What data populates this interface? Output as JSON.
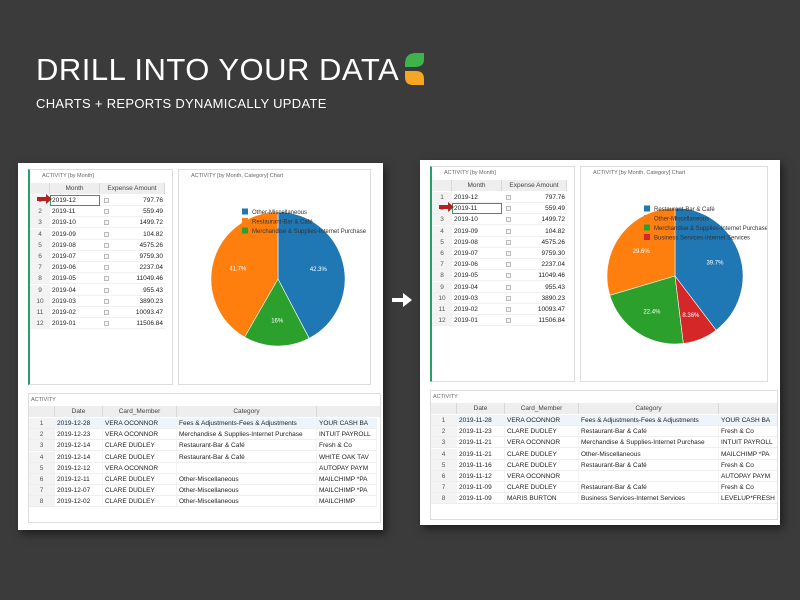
{
  "header": {
    "title": "DRILL INTO YOUR DATA",
    "subtitle": "CHARTS + REPORTS DYNAMICALLY UPDATE"
  },
  "panels": [
    {
      "month_table": {
        "title": "ACTIVITY [by Month]",
        "columns": [
          "Month",
          "Expense Amount"
        ],
        "rows": [
          [
            "1",
            "2019-12",
            "797.76"
          ],
          [
            "2",
            "2019-11",
            "559.49"
          ],
          [
            "3",
            "2019-10",
            "1499.72"
          ],
          [
            "4",
            "2019-09",
            "104.82"
          ],
          [
            "5",
            "2019-08",
            "4575.26"
          ],
          [
            "6",
            "2019-07",
            "9759.30"
          ],
          [
            "7",
            "2019-06",
            "2237.04"
          ],
          [
            "8",
            "2019-05",
            "11049.46"
          ],
          [
            "9",
            "2019-04",
            "955.43"
          ],
          [
            "10",
            "2019-03",
            "3890.23"
          ],
          [
            "11",
            "2019-02",
            "10093.47"
          ],
          [
            "12",
            "2019-01",
            "11506.84"
          ]
        ]
      },
      "chart_title": "ACTIVITY [by Month, Category] Chart",
      "activity_table": {
        "title": "ACTIVITY",
        "columns": [
          "Date",
          "Card_Member",
          "Category"
        ],
        "rows": [
          [
            "1",
            "2019-12-28",
            "VERA OCONNOR",
            "Fees & Adjustments-Fees & Adjustments",
            "YOUR CASH BA"
          ],
          [
            "2",
            "2019-12-23",
            "VERA OCONNOR",
            "Merchandise & Supplies-Internet Purchase",
            "INTUIT PAYROLL"
          ],
          [
            "3",
            "2019-12-14",
            "CLARE DUDLEY",
            "Restaurant-Bar & Café",
            "Fresh & Co"
          ],
          [
            "4",
            "2019-12-14",
            "CLARE DUDLEY",
            "Restaurant-Bar & Café",
            "WHITE OAK TAV"
          ],
          [
            "5",
            "2019-12-12",
            "VERA OCONNOR",
            null,
            "AUTOPAY PAYM"
          ],
          [
            "6",
            "2019-12-11",
            "CLARE DUDLEY",
            "Other-Miscellaneous",
            "MAILCHIMP  *PA"
          ],
          [
            "7",
            "2019-12-07",
            "CLARE DUDLEY",
            "Other-Miscellaneous",
            "MAILCHIMP  *PA"
          ],
          [
            "8",
            "2019-12-02",
            "CLARE DUDLEY",
            "Other-Miscellaneous",
            "MAILCHIMP"
          ]
        ]
      }
    },
    {
      "month_table": {
        "title": "ACTIVITY [by Month]",
        "columns": [
          "Month",
          "Expense Amount"
        ],
        "rows": [
          [
            "1",
            "2019-12",
            "797.76"
          ],
          [
            "2",
            "2019-11",
            "559.49"
          ],
          [
            "3",
            "2019-10",
            "1499.72"
          ],
          [
            "4",
            "2019-09",
            "104.82"
          ],
          [
            "5",
            "2019-08",
            "4575.26"
          ],
          [
            "6",
            "2019-07",
            "9759.30"
          ],
          [
            "7",
            "2019-06",
            "2237.04"
          ],
          [
            "8",
            "2019-05",
            "11049.46"
          ],
          [
            "9",
            "2019-04",
            "955.43"
          ],
          [
            "10",
            "2019-03",
            "3890.23"
          ],
          [
            "11",
            "2019-02",
            "10093.47"
          ],
          [
            "12",
            "2019-01",
            "11506.84"
          ]
        ]
      },
      "chart_title": "ACTIVITY [by Month, Category] Chart",
      "activity_table": {
        "title": "ACTIVITY",
        "columns": [
          "Date",
          "Card_Member",
          "Category"
        ],
        "rows": [
          [
            "1",
            "2019-11-28",
            "VERA OCONNOR",
            "Fees & Adjustments-Fees & Adjustments",
            "YOUR CASH BA"
          ],
          [
            "2",
            "2019-11-23",
            "CLARE DUDLEY",
            "Restaurant-Bar & Café",
            "Fresh & Co"
          ],
          [
            "3",
            "2019-11-21",
            "VERA OCONNOR",
            "Merchandise & Supplies-Internet Purchase",
            "INTUIT PAYROLL"
          ],
          [
            "4",
            "2019-11-21",
            "CLARE DUDLEY",
            "Other-Miscellaneous",
            "MAILCHIMP  *PA"
          ],
          [
            "5",
            "2019-11-16",
            "CLARE DUDLEY",
            "Restaurant-Bar & Café",
            "Fresh & Co"
          ],
          [
            "6",
            "2019-11-12",
            "VERA OCONNOR",
            null,
            "AUTOPAY PAYM"
          ],
          [
            "7",
            "2019-11-09",
            "CLARE DUDLEY",
            "Restaurant-Bar & Café",
            "Fresh & Co"
          ],
          [
            "8",
            "2019-11-09",
            "MARIS BURTON",
            "Business Services-Internet Services",
            "LEVELUP*FRESH"
          ]
        ]
      }
    }
  ],
  "chart_data": [
    {
      "type": "pie",
      "categories": [
        "Other-Miscellaneous",
        "Restaurant-Bar & Café",
        "Merchandise & Supplies-Internet Purchase"
      ],
      "values": [
        42.3,
        41.7,
        16
      ],
      "value_labels": [
        "42.3%",
        "41.7%",
        "16%"
      ],
      "colors": [
        "#1f77b4",
        "#ff7f0e",
        "#2ca02c"
      ]
    },
    {
      "type": "pie",
      "categories": [
        "Restaurant-Bar & Café",
        "Other-Miscellaneous",
        "Merchandise & Supplies-Internet Purchase",
        "Business Services-Internet Services"
      ],
      "values": [
        39.7,
        29.6,
        22.4,
        8.36
      ],
      "value_labels": [
        "39.7%",
        "29.6%",
        "22.4%",
        "8.36%"
      ],
      "colors": [
        "#1f77b4",
        "#ff7f0e",
        "#2ca02c",
        "#d62728"
      ]
    }
  ]
}
